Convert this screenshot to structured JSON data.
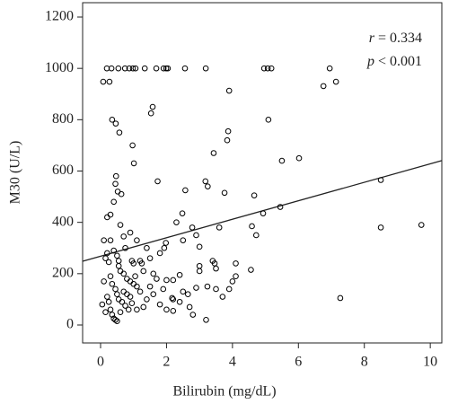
{
  "chart_data": {
    "type": "scatter",
    "x_label": "Bilirubin (mg/dL)",
    "y_label": "M30 (U/L)",
    "annotations": [
      {
        "symbol": "r",
        "text": "= 0.334"
      },
      {
        "symbol": "p",
        "text": "< 0.001"
      }
    ],
    "xlim": [
      -0.545,
      10.35
    ],
    "ylim": [
      -70,
      1256
    ],
    "xticks": [
      0,
      2,
      4,
      6,
      8,
      10
    ],
    "yticks": [
      0,
      200,
      400,
      600,
      800,
      1000,
      1200
    ],
    "regression": {
      "intercept": 268,
      "slope": 36
    },
    "marker_color": "#000000",
    "x": [
      0.19,
      0.33,
      0.54,
      0.74,
      0.87,
      0.98,
      1.06,
      1.34,
      1.69,
      1.91,
      1.99,
      2.04,
      2.56,
      3.19,
      4.96,
      5.07,
      5.18,
      6.95,
      0.08,
      0.27,
      7.14,
      6.76,
      3.9,
      0.35,
      0.46,
      0.57,
      0.97,
      1.58,
      1.53,
      3.87,
      3.84,
      3.43,
      5.09,
      6.02,
      5.5,
      3.18,
      3.25,
      3.76,
      2.57,
      1.73,
      0.47,
      0.45,
      0.52,
      0.63,
      1.01,
      4.66,
      4.93,
      5.45,
      8.5,
      8.5,
      9.73,
      7.27,
      4.72,
      4.59,
      3.6,
      2.48,
      2.3,
      2.78,
      2.9,
      1.98,
      1.93,
      1.8,
      3.0,
      3.0,
      3.0,
      3.4,
      3.46,
      3.5,
      2.4,
      2.2,
      2.0,
      4.1,
      4.1,
      4.0,
      4.56,
      3.24,
      3.5,
      3.9,
      3.7,
      2.9,
      2.65,
      2.5,
      2.17,
      2.2,
      2.4,
      2.7,
      2.8,
      3.2,
      2.2,
      2.0,
      1.8,
      1.4,
      1.3,
      1.1,
      0.95,
      0.1,
      0.2,
      0.3,
      0.15,
      0.25,
      0.4,
      0.5,
      0.55,
      0.6,
      0.7,
      0.8,
      0.9,
      1.0,
      1.1,
      1.2,
      0.3,
      0.35,
      0.45,
      0.5,
      0.55,
      0.65,
      0.75,
      0.85,
      0.2,
      0.25,
      0.3,
      0.35,
      0.4,
      0.5,
      0.6,
      0.7,
      0.8,
      0.9,
      1.0,
      1.2,
      1.4,
      1.5,
      1.6,
      1.7,
      1.3,
      1.5,
      0.1,
      0.05,
      0.15,
      0.9,
      0.6,
      0.7,
      1.1,
      1.25,
      1.6,
      1.9,
      2.5,
      0.4,
      0.55,
      0.2,
      0.3,
      0.75,
      0.95,
      1.05,
      0.45
    ],
    "y": [
      1000,
      1000,
      1000,
      1000,
      1000,
      1000,
      1000,
      1000,
      1000,
      1000,
      1000,
      1000,
      1000,
      1000,
      1000,
      1000,
      1000,
      1000,
      948,
      948,
      948,
      931,
      913,
      800,
      785,
      750,
      700,
      850,
      825,
      755,
      720,
      670,
      800,
      650,
      640,
      560,
      540,
      515,
      525,
      560,
      580,
      550,
      520,
      510,
      630,
      505,
      435,
      460,
      565,
      380,
      390,
      105,
      350,
      385,
      380,
      435,
      400,
      380,
      350,
      320,
      300,
      280,
      305,
      230,
      210,
      250,
      240,
      220,
      195,
      175,
      175,
      240,
      190,
      170,
      215,
      150,
      140,
      140,
      110,
      145,
      120,
      130,
      105,
      100,
      90,
      70,
      40,
      20,
      55,
      60,
      80,
      100,
      70,
      60,
      85,
      330,
      420,
      430,
      260,
      245,
      290,
      270,
      230,
      210,
      200,
      180,
      170,
      160,
      150,
      130,
      190,
      160,
      140,
      120,
      100,
      90,
      75,
      60,
      110,
      90,
      60,
      40,
      25,
      15,
      50,
      130,
      120,
      110,
      240,
      250,
      300,
      260,
      200,
      180,
      210,
      150,
      170,
      80,
      50,
      360,
      390,
      345,
      330,
      240,
      120,
      140,
      330,
      480,
      250,
      280,
      330,
      300,
      250,
      190,
      20
    ]
  }
}
